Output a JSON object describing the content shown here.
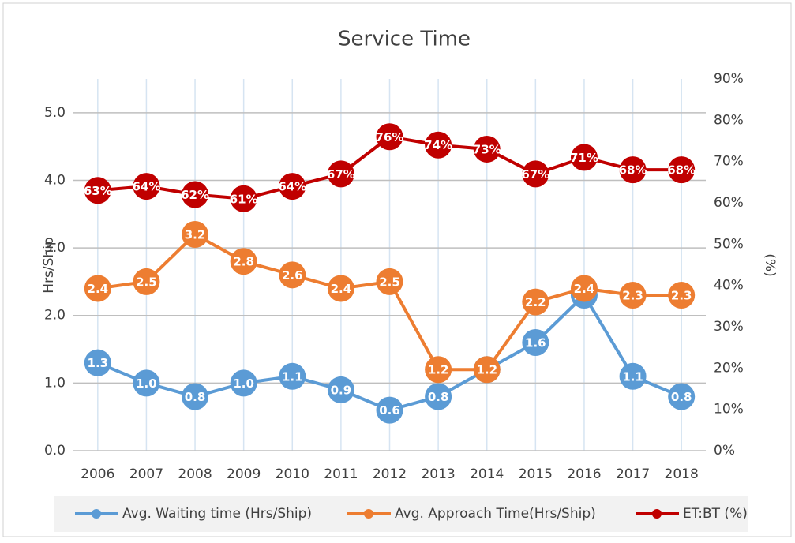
{
  "chart_data": {
    "type": "line",
    "title": "Service Time",
    "categories": [
      "2006",
      "2007",
      "2008",
      "2009",
      "2010",
      "2011",
      "2012",
      "2013",
      "2014",
      "2015",
      "2016",
      "2017",
      "2018"
    ],
    "ylabel": "Hrs/Ship",
    "y2label": "(%)",
    "ylim": [
      0,
      5.5
    ],
    "yticks": [
      {
        "value": 0,
        "label": "0.0"
      },
      {
        "value": 1,
        "label": "1.0"
      },
      {
        "value": 2,
        "label": "2.0"
      },
      {
        "value": 3,
        "label": "3.0"
      },
      {
        "value": 4,
        "label": "4.0"
      },
      {
        "value": 5,
        "label": "5.0"
      }
    ],
    "y2lim": [
      0,
      90
    ],
    "y2ticks": [
      {
        "value": 0,
        "label": "0%"
      },
      {
        "value": 10,
        "label": "10%"
      },
      {
        "value": 20,
        "label": "20%"
      },
      {
        "value": 30,
        "label": "30%"
      },
      {
        "value": 40,
        "label": "40%"
      },
      {
        "value": 50,
        "label": "50%"
      },
      {
        "value": 60,
        "label": "60%"
      },
      {
        "value": 70,
        "label": "70%"
      },
      {
        "value": 80,
        "label": "80%"
      },
      {
        "value": 90,
        "label": "90%"
      }
    ],
    "grid": true,
    "legend": "bottom",
    "series": [
      {
        "name": "Avg. Waiting time (Hrs/Ship)",
        "color": "#5b9bd5",
        "values": [
          1.3,
          1.0,
          0.8,
          1.0,
          1.1,
          0.9,
          0.6,
          0.8,
          1.2,
          1.6,
          2.3,
          1.1,
          0.8
        ],
        "value_labels": [
          "1.3",
          "1.0",
          "0.8",
          "1.0",
          "1.1",
          "0.9",
          "0.6",
          "0.8",
          "1.2",
          "1.6",
          "2.3",
          "1.1",
          "0.8"
        ]
      },
      {
        "name": "Avg. Approach Time(Hrs/Ship)",
        "color": "#ed7d31",
        "values": [
          2.4,
          2.5,
          3.2,
          2.8,
          2.6,
          2.4,
          2.5,
          1.2,
          1.2,
          2.2,
          2.4,
          2.3,
          2.3
        ],
        "value_labels": [
          "2.4",
          "2.5",
          "3.2",
          "2.8",
          "2.6",
          "2.4",
          "2.5",
          "1.2",
          "1.2",
          "2.2",
          "2.4",
          "2.3",
          "2.3"
        ]
      },
      {
        "name": "ET:BT (%)",
        "color": "#c00000",
        "axis": "y2",
        "values": [
          63,
          64,
          62,
          61,
          64,
          67,
          76,
          74,
          73,
          67,
          71,
          68,
          68
        ],
        "value_labels": [
          "63%",
          "64%",
          "62%",
          "61%",
          "64%",
          "67%",
          "76%",
          "74%",
          "73%",
          "67%",
          "71%",
          "68%",
          "68%"
        ]
      }
    ]
  }
}
